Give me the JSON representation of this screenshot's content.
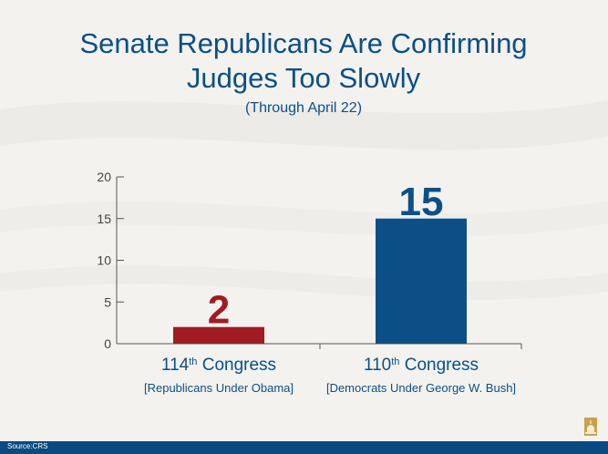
{
  "chart_data": {
    "type": "bar",
    "title_line1": "Senate Republicans Are Confirming",
    "title_line2": "Judges Too Slowly",
    "subtitle": "(Through April 22)",
    "categories": [
      {
        "main": "114",
        "sup": "th",
        "rest": " Congress",
        "sub": "[Republicans Under Obama]"
      },
      {
        "main": "110",
        "sup": "th",
        "rest": " Congress",
        "sub": "[Democrats Under George W. Bush]"
      }
    ],
    "values": [
      2,
      15
    ],
    "colors": [
      "#a01c22",
      "#0c4f86"
    ],
    "value_label_colors": [
      "#a01c22",
      "#0c4f86"
    ],
    "ylim": [
      0,
      20
    ],
    "yticks": [
      0,
      5,
      10,
      15,
      20
    ],
    "xlabel": "",
    "ylabel": ""
  },
  "colors": {
    "title": "#0c4f86",
    "axis": "#555555",
    "footer": "#0b4a7e"
  },
  "footer": {
    "source": "Source:CRS"
  },
  "logo_icon": "capitol-dome-logo-icon"
}
